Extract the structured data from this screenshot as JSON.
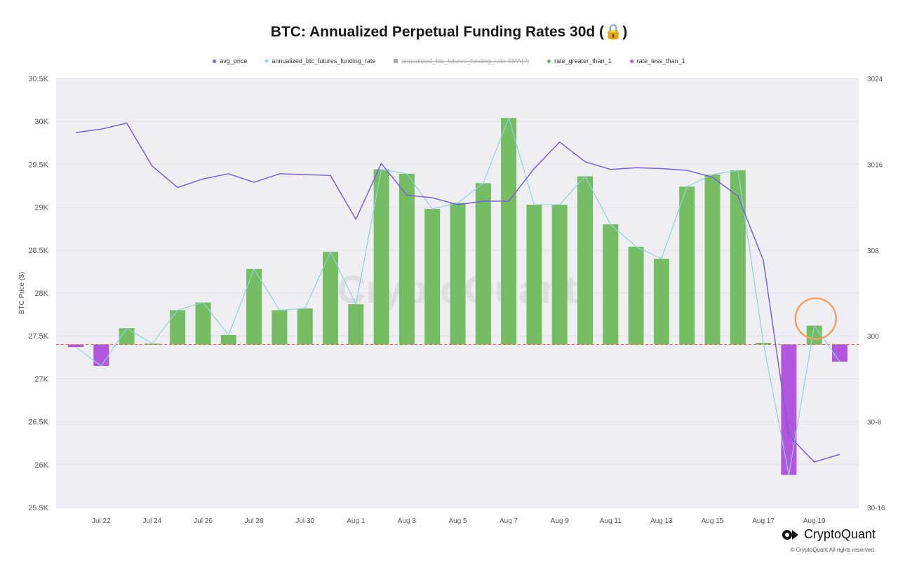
{
  "title": "BTC: Annualized Perpetual Funding Rates 30d",
  "title_icon": "lock-icon",
  "legend": [
    {
      "label": "avg_price",
      "color": "#7b61d9",
      "marker": "dot",
      "enabled": true
    },
    {
      "label": "annualized_btc_futures_funding_rate",
      "color": "#8ed4e0",
      "marker": "diamond",
      "enabled": true
    },
    {
      "label": "annualized_btc_futures_funding_rate-SMA(?)",
      "color": "#aaaaaa",
      "marker": "square",
      "enabled": false
    },
    {
      "label": "rate_greater_than_1",
      "color": "#5cb85c",
      "marker": "dot",
      "enabled": true
    },
    {
      "label": "rate_less_than_1",
      "color": "#c452dd",
      "marker": "dot",
      "enabled": true
    }
  ],
  "watermark": "CryptoQuant",
  "brand": {
    "name": "CryptoQuant",
    "copyright": "© CryptoQuant All rights reserved."
  },
  "colors": {
    "plot_bg": "#efeff3",
    "grid": "#e2e2e8",
    "price_line": "#7b61d9",
    "rate_line": "#8ed4e0",
    "bar_positive": "#75bd63",
    "bar_negative": "#b255df",
    "reference_line": "#e26a4a",
    "highlight": "#f2a25e"
  },
  "chart_data": {
    "type": "bar+line",
    "ylabel_left": "BTC Price ($)",
    "left_axis": {
      "min": 25500,
      "max": 30500,
      "ticks": [
        25500,
        26000,
        26500,
        27000,
        27500,
        28000,
        28500,
        29000,
        29500,
        30000,
        30500
      ],
      "tick_labels": [
        "25.5K",
        "26K",
        "26.5K",
        "27K",
        "27.5K",
        "28K",
        "28.5K",
        "29K",
        "29.5K",
        "30K",
        "30.5K"
      ]
    },
    "right_axis": {
      "tick_labels": [
        "30-16",
        "30-8",
        "300",
        "308",
        "3016",
        "3024"
      ]
    },
    "right_axis_positions_in_left_units": [
      25500,
      26500,
      27500,
      28500,
      29500,
      30500
    ],
    "x_tick_labels": [
      "Jul 22",
      "Jul 24",
      "Jul 26",
      "Jul 28",
      "Jul 30",
      "Aug 1",
      "Aug 3",
      "Aug 5",
      "Aug 7",
      "Aug 9",
      "Aug 11",
      "Aug 13",
      "Aug 15",
      "Aug 17",
      "Aug 19"
    ],
    "days": [
      "Jul 21",
      "Jul 22",
      "Jul 23",
      "Jul 24",
      "Jul 25",
      "Jul 26",
      "Jul 27",
      "Jul 28",
      "Jul 29",
      "Jul 30",
      "Jul 31",
      "Aug 1",
      "Aug 2",
      "Aug 3",
      "Aug 4",
      "Aug 5",
      "Aug 6",
      "Aug 7",
      "Aug 8",
      "Aug 9",
      "Aug 10",
      "Aug 11",
      "Aug 12",
      "Aug 13",
      "Aug 14",
      "Aug 15",
      "Aug 16",
      "Aug 17",
      "Aug 18",
      "Aug 19",
      "Aug 20"
    ],
    "reference_level": 27400,
    "funding_rate_series_in_left_units": [
      27370,
      27150,
      27590,
      27410,
      27800,
      27890,
      27510,
      28280,
      27800,
      27820,
      28480,
      27870,
      29440,
      29390,
      28980,
      29050,
      29280,
      30040,
      29030,
      29030,
      29360,
      28800,
      28540,
      28400,
      29240,
      29380,
      29430,
      27420,
      25880,
      27620,
      27200
    ],
    "avg_price": [
      29870,
      29910,
      29980,
      29480,
      29230,
      29330,
      29390,
      29290,
      29390,
      29380,
      29370,
      28860,
      29510,
      29140,
      29110,
      29030,
      29070,
      29070,
      29450,
      29760,
      29530,
      29440,
      29460,
      29450,
      29430,
      29350,
      29130,
      28380,
      26340,
      26030,
      26120
    ],
    "highlighted_day": "Aug 19"
  }
}
